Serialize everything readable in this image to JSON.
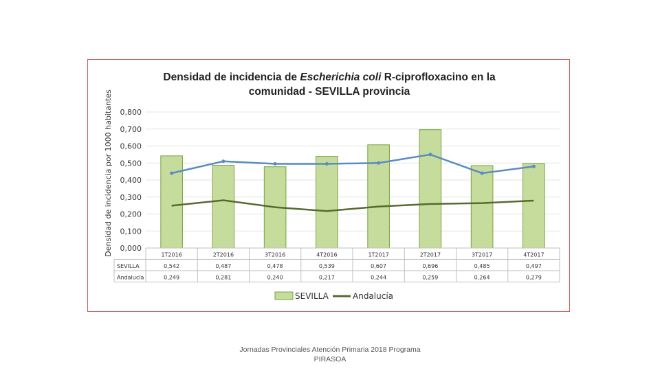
{
  "chart_data": {
    "type": "bar",
    "title_line1_pre": "Densidad de incidencia de ",
    "title_line1_italic": "Escherichia coli",
    "title_line1_post": " R-ciprofloxacino en la",
    "title_line2": "comunidad - SEVILLA provincia",
    "ylabel": "Densidad de incidencia por 1000 habitantes",
    "ylim": [
      0,
      0.8
    ],
    "yticks": [
      0,
      0.1,
      0.2,
      0.3,
      0.4,
      0.5,
      0.6,
      0.7,
      0.8
    ],
    "ytick_labels": [
      "0,000",
      "0,100",
      "0,200",
      "0,300",
      "0,400",
      "0,500",
      "0,600",
      "0,700",
      "0,800"
    ],
    "categories": [
      "1T2016",
      "2T2016",
      "3T2016",
      "4T2016",
      "1T2017",
      "2T2017",
      "3T2017",
      "4T2017"
    ],
    "series": [
      {
        "name": "SEVILLA",
        "kind": "bar",
        "color": "#c5dc9c",
        "edge": "#79a33f",
        "values": [
          0.542,
          0.487,
          0.478,
          0.539,
          0.607,
          0.696,
          0.485,
          0.497
        ],
        "labels": [
          "0,542",
          "0,487",
          "0,478",
          "0,539",
          "0,607",
          "0,696",
          "0,485",
          "0,497"
        ]
      },
      {
        "name": "Andalucía",
        "kind": "line",
        "color": "#556b2f",
        "values": [
          0.249,
          0.281,
          0.24,
          0.217,
          0.244,
          0.259,
          0.264,
          0.279
        ],
        "labels": [
          "0,249",
          "0,281",
          "0,240",
          "0,217",
          "0,244",
          "0,259",
          "0,264",
          "0,279"
        ]
      }
    ],
    "extra_line": {
      "color": "#5b8bc1",
      "values": [
        0.44,
        0.51,
        0.495,
        0.495,
        0.5,
        0.55,
        0.44,
        0.48
      ]
    },
    "table_row_labels": [
      "SEVILLA",
      "Andalucía"
    ],
    "legend": [
      "SEVILLA",
      "Andalucía"
    ]
  },
  "footer": {
    "line1": "Jornadas Provinciales Atención Primaria 2018 Programa",
    "line2": "PIRASOA"
  }
}
